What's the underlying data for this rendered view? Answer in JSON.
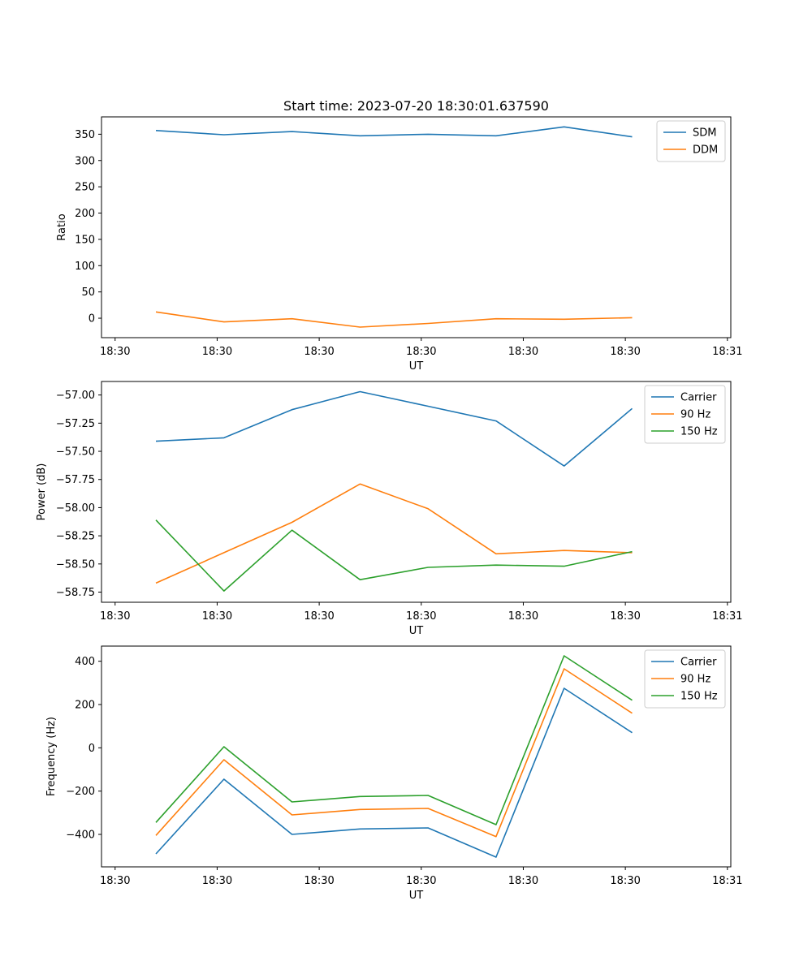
{
  "chart_data": [
    {
      "type": "line",
      "title": "Start time: 2023-07-20 18:30:01.637590",
      "xlabel": "UT",
      "ylabel": "Ratio",
      "x": [
        1,
        2,
        3,
        4,
        5,
        6,
        7,
        8
      ],
      "xlim": [
        0.2,
        9.45
      ],
      "x_ticks": [
        0.4,
        1.9,
        3.4,
        4.9,
        6.4,
        7.9,
        9.4
      ],
      "x_tick_labels": [
        "18:30",
        "18:30",
        "18:30",
        "18:30",
        "18:30",
        "18:30",
        "18:31"
      ],
      "ylim": [
        -37,
        383
      ],
      "y_ticks": [
        0,
        50,
        100,
        150,
        200,
        250,
        300,
        350
      ],
      "y_tick_labels": [
        "0",
        "50",
        "100",
        "150",
        "200",
        "250",
        "300",
        "350"
      ],
      "legend_position": "top-right",
      "grid": false,
      "series": [
        {
          "name": "SDM",
          "color": "#1f77b4",
          "values": [
            357,
            349,
            355,
            347,
            350,
            347,
            364,
            345
          ]
        },
        {
          "name": "DDM",
          "color": "#ff7f0e",
          "values": [
            12,
            -7,
            -1,
            -17,
            -10,
            -1,
            -2,
            1
          ]
        }
      ]
    },
    {
      "type": "line",
      "title": "",
      "xlabel": "UT",
      "ylabel": "Power (dB)",
      "x": [
        1,
        2,
        3,
        4,
        5,
        6,
        7,
        8
      ],
      "xlim": [
        0.2,
        9.45
      ],
      "x_ticks": [
        0.4,
        1.9,
        3.4,
        4.9,
        6.4,
        7.9,
        9.4
      ],
      "x_tick_labels": [
        "18:30",
        "18:30",
        "18:30",
        "18:30",
        "18:30",
        "18:30",
        "18:31"
      ],
      "ylim": [
        -58.84,
        -56.88
      ],
      "y_ticks": [
        -57.0,
        -57.25,
        -57.5,
        -57.75,
        -58.0,
        -58.25,
        -58.5,
        -58.75
      ],
      "y_tick_labels": [
        "−57.00",
        "−57.25",
        "−57.50",
        "−57.75",
        "−58.00",
        "−58.25",
        "−58.50",
        "−58.75"
      ],
      "legend_position": "top-right",
      "grid": false,
      "series": [
        {
          "name": "Carrier",
          "color": "#1f77b4",
          "values": [
            -57.41,
            -57.38,
            -57.13,
            -56.97,
            -57.1,
            -57.23,
            -57.63,
            -57.12
          ]
        },
        {
          "name": "90 Hz",
          "color": "#ff7f0e",
          "values": [
            -58.67,
            -58.4,
            -58.13,
            -57.79,
            -58.01,
            -58.41,
            -58.38,
            -58.4
          ]
        },
        {
          "name": "150 Hz",
          "color": "#2ca02c",
          "values": [
            -58.11,
            -58.74,
            -58.2,
            -58.64,
            -58.53,
            -58.51,
            -58.52,
            -58.39
          ]
        }
      ]
    },
    {
      "type": "line",
      "title": "",
      "xlabel": "UT",
      "ylabel": "Frequency (Hz)",
      "x": [
        1,
        2,
        3,
        4,
        5,
        6,
        7,
        8
      ],
      "xlim": [
        0.2,
        9.45
      ],
      "x_ticks": [
        0.4,
        1.9,
        3.4,
        4.9,
        6.4,
        7.9,
        9.4
      ],
      "x_tick_labels": [
        "18:30",
        "18:30",
        "18:30",
        "18:30",
        "18:30",
        "18:30",
        "18:31"
      ],
      "ylim": [
        -550,
        470
      ],
      "y_ticks": [
        400,
        200,
        0,
        -200,
        -400
      ],
      "y_tick_labels": [
        "400",
        "200",
        "0",
        "−200",
        "−400"
      ],
      "legend_position": "top-right",
      "grid": false,
      "series": [
        {
          "name": "Carrier",
          "color": "#1f77b4",
          "values": [
            -490,
            -145,
            -400,
            -375,
            -370,
            -505,
            275,
            70
          ]
        },
        {
          "name": "90 Hz",
          "color": "#ff7f0e",
          "values": [
            -405,
            -55,
            -310,
            -285,
            -280,
            -410,
            365,
            160
          ]
        },
        {
          "name": "150 Hz",
          "color": "#2ca02c",
          "values": [
            -345,
            5,
            -250,
            -225,
            -220,
            -355,
            425,
            220
          ]
        }
      ]
    }
  ]
}
